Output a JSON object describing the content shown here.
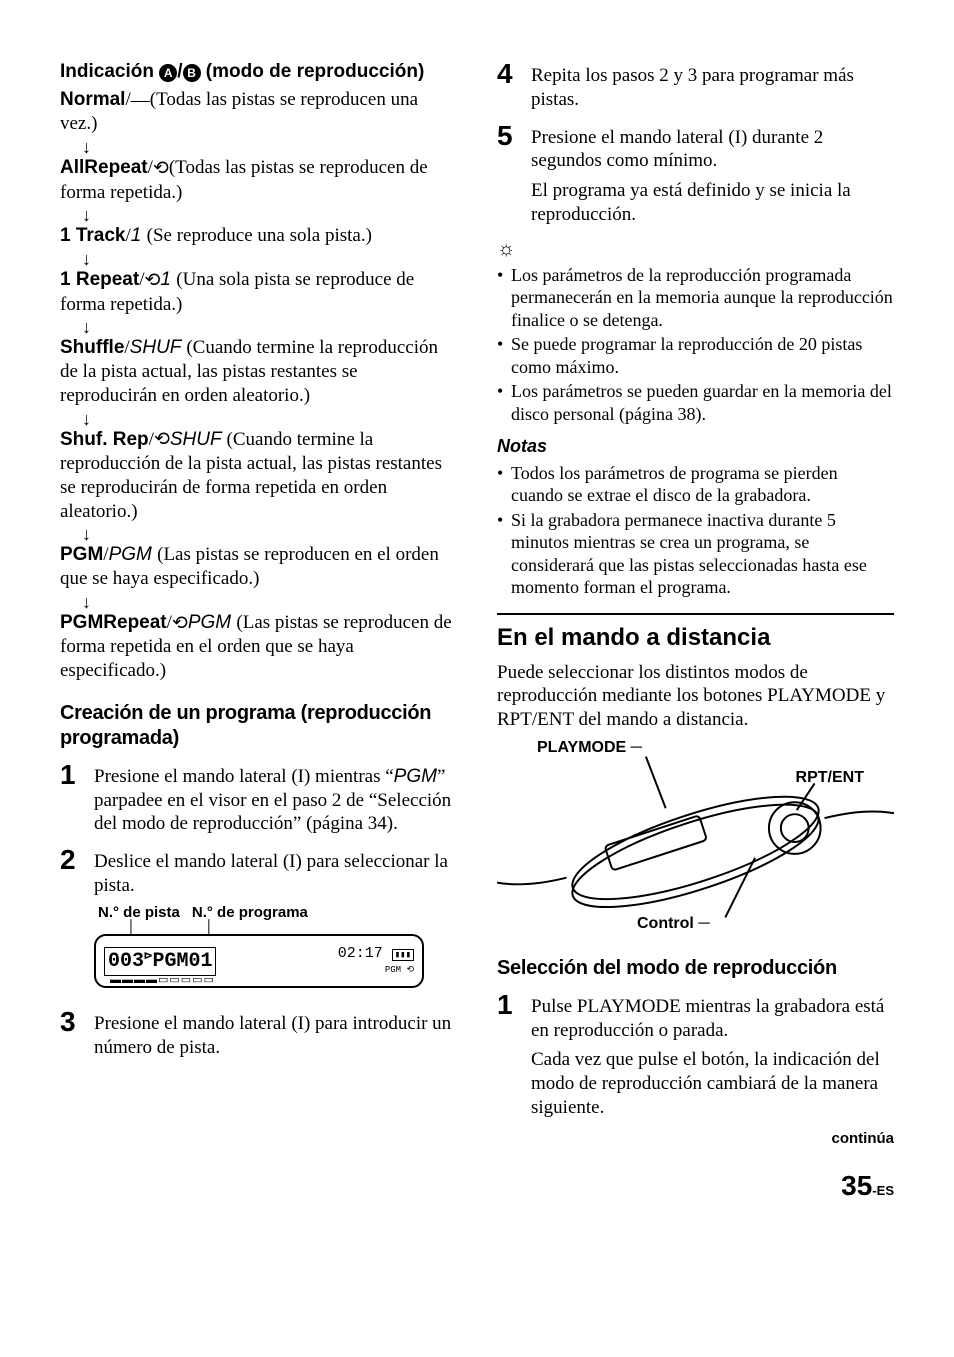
{
  "left": {
    "heading_pre": "Indicación ",
    "heading_post": " (modo de reproducción)",
    "circA": "A",
    "slash": "/",
    "circB": "B",
    "modes": [
      {
        "label": "Normal",
        "sep": "/",
        "sym": "— ",
        "symItalic": "",
        "desc": "(Todas las pistas se reproducen una vez.)"
      },
      {
        "label": "AllRepeat",
        "sep": "/",
        "sym": "⟲ ",
        "symItalic": "",
        "desc": "(Todas las pistas se reproducen de forma repetida.)"
      },
      {
        "label": "1 Track",
        "sep": "/",
        "sym": "",
        "symItalic": "1 ",
        "desc": "(Se reproduce una sola pista.)"
      },
      {
        "label": "1 Repeat",
        "sep": "/",
        "sym": "⟲ ",
        "symItalic": "1 ",
        "desc": "(Una sola pista se reproduce de forma repetida.)"
      },
      {
        "label": "Shuffle",
        "sep": "/",
        "sym": "",
        "symItalic": "SHUF ",
        "desc": "(Cuando termine la reproducción de la pista actual, las pistas restantes se reproducirán en orden aleatorio.)"
      },
      {
        "label": "Shuf. Rep",
        "sep": "/",
        "sym": "⟲ ",
        "symItalic": "SHUF ",
        "desc": "(Cuando termine la reproducción de la pista actual, las pistas restantes se reproducirán de forma repetida en orden aleatorio.)"
      },
      {
        "label": "PGM",
        "sep": "/",
        "sym": "",
        "symItalic": "PGM ",
        "desc": "(Las pistas se reproducen en el orden que se haya especificado.)"
      },
      {
        "label": "PGMRepeat",
        "sep": "/",
        "sym": "⟲ ",
        "symItalic": "PGM ",
        "desc": "(Las pistas se reproducen de forma repetida en el orden que se haya especificado.)"
      }
    ],
    "prog_heading": "Creación de un programa (reproducción programada)",
    "step1": {
      "pre": "Presione el mando lateral (I) mientras “",
      "pgm": "PGM",
      "post": "” parpadee en el visor en el paso 2 de “Selección del modo de reproducción” (página 34)."
    },
    "step2": "Deslice el mando lateral (I) para seleccionar la pista.",
    "lcd_label1": "N.° de pista",
    "lcd_label2": "N.° de programa",
    "lcd_text": "003 PGM01",
    "lcd_right1": "02:17",
    "lcd_right2": "PGM ⟲",
    "step3": "Presione el mando lateral (I) para introducir un número de pista."
  },
  "right": {
    "step4": "Repita los pasos 2 y 3 para programar más pistas.",
    "step5a": "Presione el mando lateral (I) durante 2 segundos como mínimo.",
    "step5b": "El programa ya está definido y se inicia la reproducción.",
    "tip_icon": "☼",
    "tips": [
      "Los parámetros de la reproducción programada permanecerán en la memoria aunque la reproducción finalice o se detenga.",
      "Se puede programar la reproducción de 20 pistas como máximo.",
      "Los parámetros se pueden guardar en la memoria del disco personal (página 38)."
    ],
    "notas_h": "Notas",
    "notas": [
      "Todos los parámetros de programa se pierden cuando se extrae el disco de la grabadora.",
      "Si la grabadora permanece inactiva durante 5 minutos mientras se crea un programa, se considerará que las pistas seleccionadas hasta ese momento forman el programa."
    ],
    "remote_h": "En el mando a distancia",
    "remote_intro": "Puede seleccionar los distintos modos de reproducción mediante los botones PLAYMODE y RPT/ENT del mando a distancia.",
    "label_playmode": "PLAYMODE",
    "label_rptent": "RPT/ENT",
    "label_control": "Control",
    "sel_h": "Selección del modo de reproducción",
    "sel_step1a": "Pulse PLAYMODE mientras la grabadora está en reproducción o parada.",
    "sel_step1b": "Cada vez que pulse el botón, la indicación del modo de reproducción cambiará de la manera siguiente.",
    "continua": "continúa"
  },
  "page": {
    "num": "35",
    "suffix": "-ES"
  }
}
